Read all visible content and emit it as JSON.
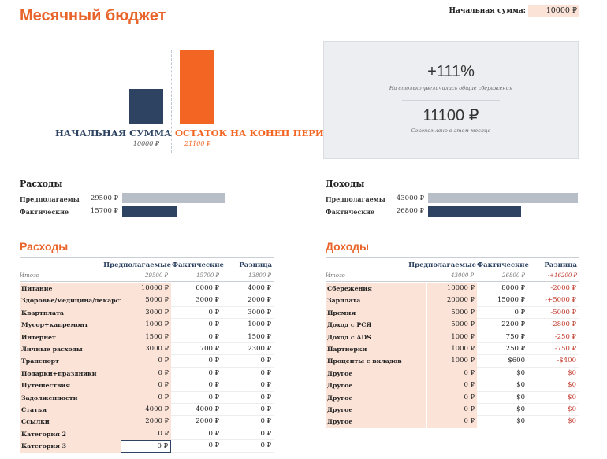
{
  "title": "Месячный бюджет",
  "start": {
    "label": "Начальная сумма:",
    "value": "10000 ₽"
  },
  "chart_data": {
    "type": "bar",
    "categories": [
      "НАЧАЛЬНАЯ СУММА",
      "ОСТАТОК НА КОНЕЦ ПЕРИОДА"
    ],
    "values": [
      10000,
      21100
    ],
    "value_labels": [
      "10000 ₽",
      "21100 ₽"
    ],
    "colors": [
      "#2d4361",
      "#f26522"
    ]
  },
  "panel": {
    "pct": "+111%",
    "pct_caption": "На столько увеличились общие сбережения",
    "saved": "11100 ₽",
    "saved_caption": "Сэкономлено в этом месяце"
  },
  "summary": {
    "expenses": {
      "title": "Расходы",
      "planned_label": "Предполагаемы",
      "planned": "29500 ₽",
      "planned_value": 29500,
      "actual_label": "Фактические",
      "actual": "15700 ₽",
      "actual_value": 15700
    },
    "income": {
      "title": "Доходы",
      "planned_label": "Предполагаемы",
      "planned": "43000 ₽",
      "planned_value": 43000,
      "actual_label": "Фактические",
      "actual": "26800 ₽",
      "actual_value": 26800
    }
  },
  "expenses_table": {
    "title": "Расходы",
    "headers": [
      "Предполагаемые",
      "Фактические",
      "Разница"
    ],
    "total_label": "Итого",
    "totals": [
      "29500 ₽",
      "15700 ₽",
      "13800 ₽"
    ],
    "rows": [
      [
        "Питание",
        "10000 ₽",
        "6000 ₽",
        "4000 ₽"
      ],
      [
        "Здоровье/медицина/лекарства",
        "5000 ₽",
        "3000 ₽",
        "2000 ₽"
      ],
      [
        "Квартплата",
        "3000 ₽",
        "0 ₽",
        "3000 ₽"
      ],
      [
        "Мусор+капремонт",
        "1000 ₽",
        "0 ₽",
        "1000 ₽"
      ],
      [
        "Интернет",
        "1500 ₽",
        "0 ₽",
        "1500 ₽"
      ],
      [
        "Личные расходы",
        "3000 ₽",
        "700 ₽",
        "2300 ₽"
      ],
      [
        "Транспорт",
        "0 ₽",
        "0 ₽",
        "0 ₽"
      ],
      [
        "Подарки+праздники",
        "0 ₽",
        "0 ₽",
        "0 ₽"
      ],
      [
        "Путешествия",
        "0 ₽",
        "0 ₽",
        "0 ₽"
      ],
      [
        "Задолженности",
        "0 ₽",
        "0 ₽",
        "0 ₽"
      ],
      [
        "Статьи",
        "4000 ₽",
        "4000 ₽",
        "0 ₽"
      ],
      [
        "Ссылки",
        "2000 ₽",
        "2000 ₽",
        "0 ₽"
      ],
      [
        "Категория 2",
        "0 ₽",
        "0 ₽",
        "0 ₽"
      ],
      [
        "Категория 3",
        "0 ₽",
        "0 ₽",
        "0 ₽"
      ]
    ]
  },
  "income_table": {
    "title": "Доходы",
    "headers": [
      "Предполагаемые",
      "Фактические",
      "Разница"
    ],
    "total_label": "Итого",
    "totals": [
      "43000 ₽",
      "26800 ₽",
      "-+16200 ₽"
    ],
    "rows": [
      [
        "Сбережения",
        "10000 ₽",
        "8000 ₽",
        "-2000 ₽"
      ],
      [
        "Зарплата",
        "20000 ₽",
        "15000 ₽",
        "-+5000 ₽"
      ],
      [
        "Премия",
        "5000 ₽",
        "0 ₽",
        "-5000 ₽"
      ],
      [
        "Доход с РСЯ",
        "5000 ₽",
        "2200 ₽",
        "-2800 ₽"
      ],
      [
        "Доход с ADS",
        "1000 ₽",
        "750 ₽",
        "-250 ₽"
      ],
      [
        "Партнерки",
        "1000 ₽",
        "250 ₽",
        "-750 ₽"
      ],
      [
        "Проценты с вкладов",
        "1000 ₽",
        "$600",
        "-$400"
      ],
      [
        "Другое",
        "0 ₽",
        "$0",
        "$0"
      ],
      [
        "Другое",
        "0 ₽",
        "$0",
        "$0"
      ],
      [
        "Другое",
        "0 ₽",
        "$0",
        "$0"
      ],
      [
        "Другое",
        "0 ₽",
        "$0",
        "$0"
      ],
      [
        "Другое",
        "0 ₽",
        "$0",
        "$0"
      ]
    ]
  },
  "colors": {
    "accent": "#e8642a",
    "navy": "#2d4361",
    "negative": "#c0392b",
    "input_fill": "#fbe3d8"
  }
}
